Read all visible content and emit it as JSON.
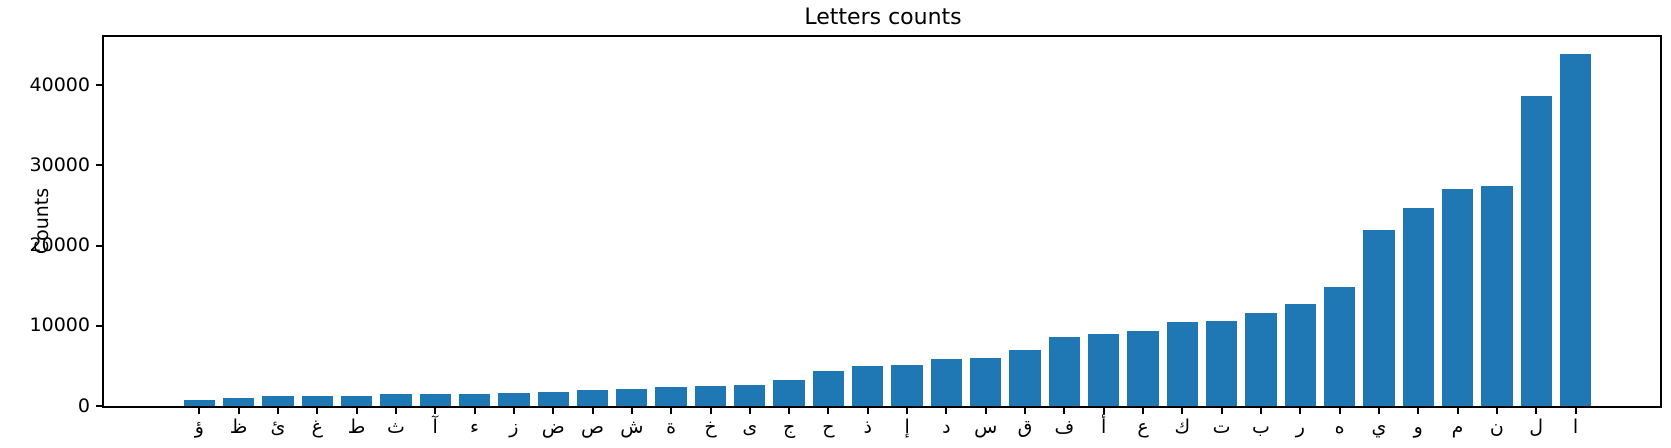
{
  "figure": {
    "background": "#ffffff"
  },
  "chart_data": {
    "type": "bar",
    "title": "Letters counts",
    "xlabel": "",
    "ylabel": "Counts",
    "categories": [
      "ؤ",
      "ظ",
      "ئ",
      "غ",
      "ط",
      "ث",
      "آ",
      "ء",
      "ز",
      "ض",
      "ص",
      "ش",
      "ة",
      "خ",
      "ى",
      "ج",
      "ح",
      "ذ",
      "إ",
      "د",
      "س",
      "ق",
      "ف",
      "أ",
      "ع",
      "ك",
      "ت",
      "ب",
      "ر",
      "ه",
      "ي",
      "و",
      "م",
      "ن",
      "ل",
      "ا"
    ],
    "values": [
      800,
      950,
      1250,
      1270,
      1300,
      1450,
      1460,
      1550,
      1570,
      1720,
      2050,
      2100,
      2350,
      2450,
      2600,
      3300,
      4350,
      4950,
      5100,
      5900,
      6050,
      7000,
      8600,
      9000,
      9350,
      10450,
      10550,
      11600,
      12700,
      14900,
      22000,
      24750,
      27000,
      27400,
      38600,
      43900
    ],
    "y_ticks": [
      0,
      10000,
      20000,
      30000,
      40000
    ],
    "ylim": [
      0,
      46000
    ],
    "grid": false,
    "legend": null,
    "bar_color": "#1f77b4",
    "axis_color": "#000000"
  }
}
